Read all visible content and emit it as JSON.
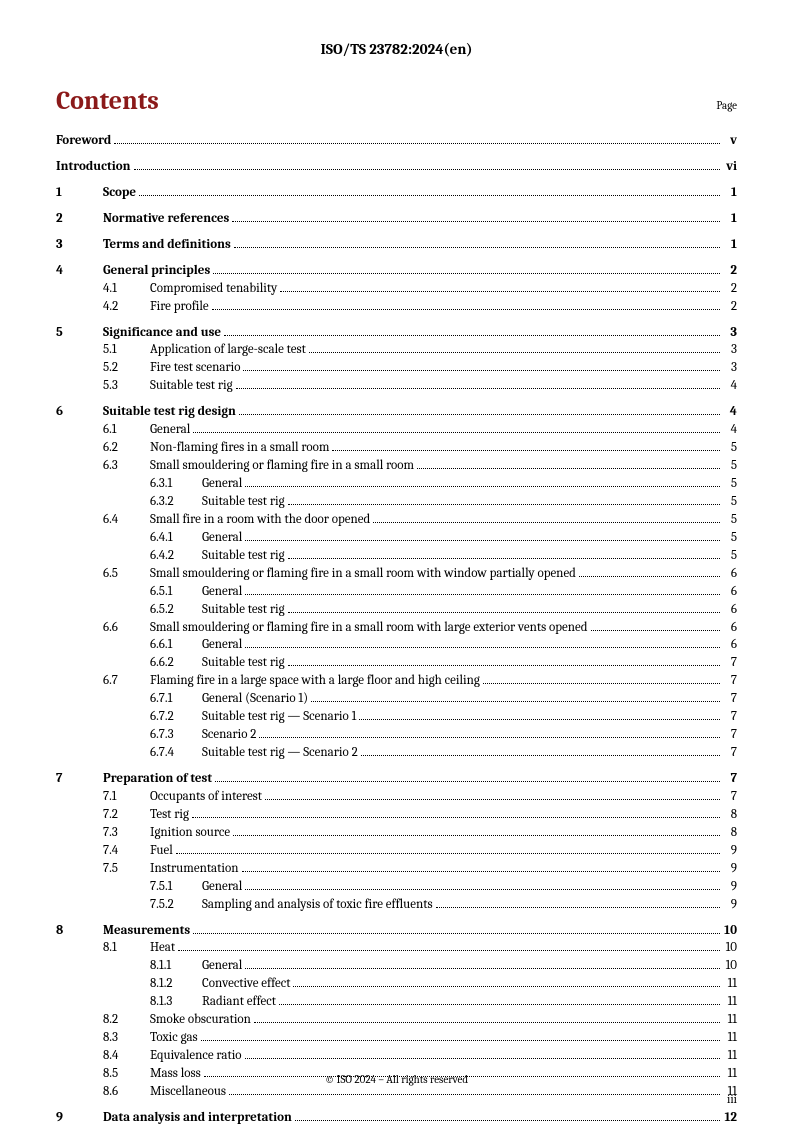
{
  "header": "ISO/TS 23782:2024(en)",
  "title": "Contents",
  "page_label": "Page",
  "footer": "© ISO 2024 – All rights reserved",
  "page_number": "iii",
  "toc": [
    {
      "type": "group",
      "items": [
        {
          "lvl": 0,
          "num": "",
          "label": "Foreword",
          "page": "v",
          "bold": true,
          "nonum": true
        }
      ]
    },
    {
      "type": "group",
      "items": [
        {
          "lvl": 0,
          "num": "",
          "label": "Introduction",
          "page": "vi",
          "bold": true,
          "nonum": true
        }
      ]
    },
    {
      "type": "group",
      "items": [
        {
          "lvl": 0,
          "num": "1",
          "label": "Scope",
          "page": "1",
          "bold": true
        }
      ]
    },
    {
      "type": "group",
      "items": [
        {
          "lvl": 0,
          "num": "2",
          "label": "Normative references",
          "page": "1",
          "bold": true
        }
      ]
    },
    {
      "type": "group",
      "items": [
        {
          "lvl": 0,
          "num": "3",
          "label": "Terms and definitions",
          "page": "1",
          "bold": true
        }
      ]
    },
    {
      "type": "group",
      "items": [
        {
          "lvl": 0,
          "num": "4",
          "label": "General principles",
          "page": "2",
          "bold": true
        },
        {
          "lvl": 1,
          "num": "4.1",
          "label": "Compromised tenability",
          "page": "2"
        },
        {
          "lvl": 1,
          "num": "4.2",
          "label": "Fire profile",
          "page": "2"
        }
      ]
    },
    {
      "type": "group",
      "items": [
        {
          "lvl": 0,
          "num": "5",
          "label": "Significance and use",
          "page": "3",
          "bold": true
        },
        {
          "lvl": 1,
          "num": "5.1",
          "label": "Application of large-scale test",
          "page": "3"
        },
        {
          "lvl": 1,
          "num": "5.2",
          "label": "Fire test scenario",
          "page": "3"
        },
        {
          "lvl": 1,
          "num": "5.3",
          "label": "Suitable test rig",
          "page": "4"
        }
      ]
    },
    {
      "type": "group",
      "items": [
        {
          "lvl": 0,
          "num": "6",
          "label": "Suitable test rig design",
          "page": "4",
          "bold": true
        },
        {
          "lvl": 1,
          "num": "6.1",
          "label": "General",
          "page": "4"
        },
        {
          "lvl": 1,
          "num": "6.2",
          "label": "Non-flaming fires in a small room",
          "page": "5"
        },
        {
          "lvl": 1,
          "num": "6.3",
          "label": "Small smouldering or flaming fire in a small room",
          "page": "5"
        },
        {
          "lvl": 2,
          "num": "6.3.1",
          "label": "General",
          "page": "5"
        },
        {
          "lvl": 2,
          "num": "6.3.2",
          "label": "Suitable test rig",
          "page": "5"
        },
        {
          "lvl": 1,
          "num": "6.4",
          "label": "Small fire in a room with the door opened",
          "page": "5"
        },
        {
          "lvl": 2,
          "num": "6.4.1",
          "label": "General",
          "page": "5"
        },
        {
          "lvl": 2,
          "num": "6.4.2",
          "label": "Suitable test rig",
          "page": "5"
        },
        {
          "lvl": 1,
          "num": "6.5",
          "label": "Small smouldering or flaming fire in a small room with window partially opened",
          "page": "6"
        },
        {
          "lvl": 2,
          "num": "6.5.1",
          "label": "General",
          "page": "6"
        },
        {
          "lvl": 2,
          "num": "6.5.2",
          "label": "Suitable test rig",
          "page": "6"
        },
        {
          "lvl": 1,
          "num": "6.6",
          "label": "Small smouldering or flaming fire in a small room with large exterior vents opened",
          "page": "6"
        },
        {
          "lvl": 2,
          "num": "6.6.1",
          "label": "General",
          "page": "6"
        },
        {
          "lvl": 2,
          "num": "6.6.2",
          "label": "Suitable test rig",
          "page": "7"
        },
        {
          "lvl": 1,
          "num": "6.7",
          "label": "Flaming fire in a large space with a large floor and high ceiling",
          "page": "7"
        },
        {
          "lvl": 2,
          "num": "6.7.1",
          "label": "General (Scenario 1)",
          "page": "7"
        },
        {
          "lvl": 2,
          "num": "6.7.2",
          "label": "Suitable test rig — Scenario 1",
          "page": "7"
        },
        {
          "lvl": 2,
          "num": "6.7.3",
          "label": "Scenario 2",
          "page": "7"
        },
        {
          "lvl": 2,
          "num": "6.7.4",
          "label": "Suitable test rig — Scenario 2",
          "page": "7"
        }
      ]
    },
    {
      "type": "group",
      "items": [
        {
          "lvl": 0,
          "num": "7",
          "label": "Preparation of test",
          "page": "7",
          "bold": true
        },
        {
          "lvl": 1,
          "num": "7.1",
          "label": "Occupants of interest",
          "page": "7"
        },
        {
          "lvl": 1,
          "num": "7.2",
          "label": "Test rig",
          "page": "8"
        },
        {
          "lvl": 1,
          "num": "7.3",
          "label": "Ignition source",
          "page": "8"
        },
        {
          "lvl": 1,
          "num": "7.4",
          "label": "Fuel",
          "page": "9"
        },
        {
          "lvl": 1,
          "num": "7.5",
          "label": "Instrumentation",
          "page": "9"
        },
        {
          "lvl": 2,
          "num": "7.5.1",
          "label": "General",
          "page": "9"
        },
        {
          "lvl": 2,
          "num": "7.5.2",
          "label": "Sampling and analysis of toxic fire effluents",
          "page": "9"
        }
      ]
    },
    {
      "type": "group",
      "items": [
        {
          "lvl": 0,
          "num": "8",
          "label": "Measurements",
          "page": "10",
          "bold": true
        },
        {
          "lvl": 1,
          "num": "8.1",
          "label": "Heat",
          "page": "10"
        },
        {
          "lvl": 2,
          "num": "8.1.1",
          "label": "General",
          "page": "10"
        },
        {
          "lvl": 2,
          "num": "8.1.2",
          "label": "Convective effect",
          "page": "11"
        },
        {
          "lvl": 2,
          "num": "8.1.3",
          "label": "Radiant effect",
          "page": "11"
        },
        {
          "lvl": 1,
          "num": "8.2",
          "label": "Smoke obscuration",
          "page": "11"
        },
        {
          "lvl": 1,
          "num": "8.3",
          "label": "Toxic gas",
          "page": "11"
        },
        {
          "lvl": 1,
          "num": "8.4",
          "label": "Equivalence ratio",
          "page": "11"
        },
        {
          "lvl": 1,
          "num": "8.5",
          "label": "Mass loss",
          "page": "11"
        },
        {
          "lvl": 1,
          "num": "8.6",
          "label": "Miscellaneous",
          "page": "11"
        }
      ]
    },
    {
      "type": "group",
      "items": [
        {
          "lvl": 0,
          "num": "9",
          "label": "Data analysis and interpretation",
          "page": "12",
          "bold": true
        }
      ]
    }
  ]
}
